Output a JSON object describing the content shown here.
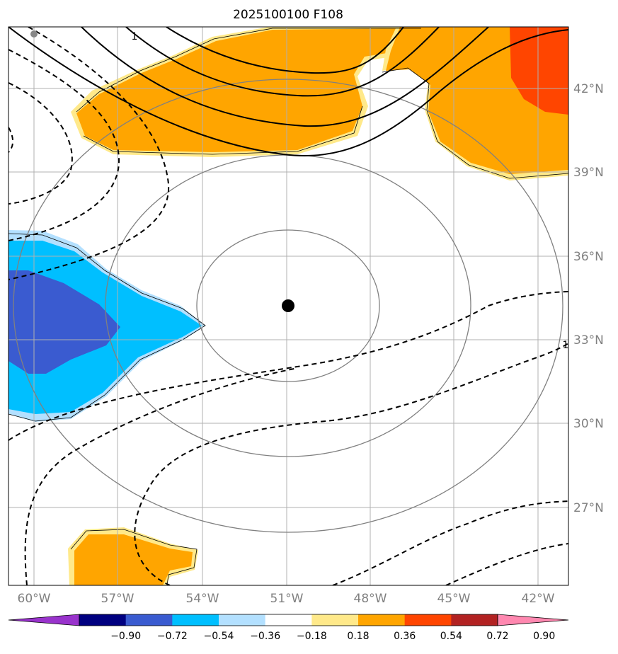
{
  "title": "2025100100 F108",
  "longitude_labels": [
    "60°W",
    "57°W",
    "54°W",
    "51°W",
    "48°W",
    "45°W",
    "42°W"
  ],
  "latitude_labels": [
    "42°N",
    "39°N",
    "36°N",
    "33°N",
    "30°N",
    "27°N"
  ],
  "contour_labels": [
    "1",
    "1"
  ],
  "colorbar": {
    "ticks": [
      "−0.90",
      "−0.72",
      "−0.54",
      "−0.36",
      "−0.18",
      "0.18",
      "0.36",
      "0.54",
      "0.72",
      "0.90"
    ],
    "colors": [
      "#9933cc",
      "#000080",
      "#3a5bd0",
      "#00bfff",
      "#b3e0ff",
      "#ffffff",
      "#ffe98a",
      "#ffa500",
      "#ff4500",
      "#b22222",
      "#ff88b0"
    ]
  },
  "center_marker": {
    "lon": -51,
    "lat": 34.2
  },
  "colors": {
    "frame": "#000000",
    "grid": "#b0b0b0",
    "range_rings": "#808080",
    "contour": "#000000",
    "fill_orange": "#ffa500",
    "fill_red_orange": "#ff4500",
    "fill_yellow": "#ffe98a",
    "fill_blue": "#00bfff",
    "fill_royal_blue": "#3a5bd0",
    "fill_light_blue": "#b3e0ff"
  }
}
